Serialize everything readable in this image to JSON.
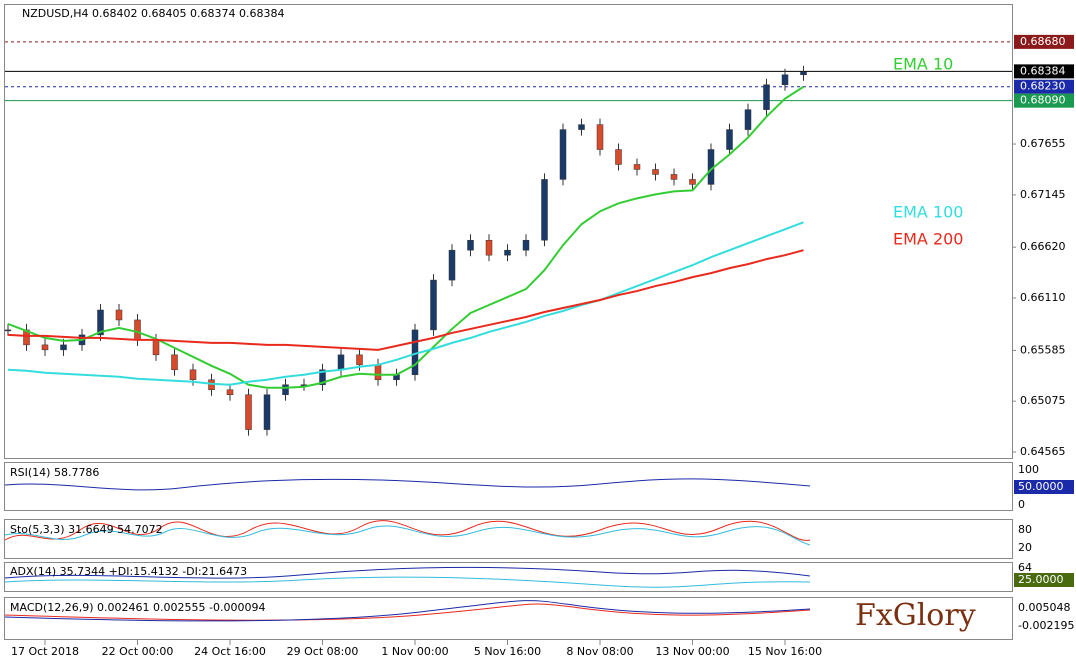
{
  "chart_data": {
    "type": "candlestick",
    "title": "NZDUSD,H4  0.68402 0.68405 0.68374 0.68384",
    "ylim": [
      0.64505,
      0.6905
    ],
    "yticks": [
      0.67655,
      0.67145,
      {
        "value": 0.6662,
        "label": "0.66620"
      },
      {
        "value": 0.6611,
        "label": "0.66110"
      },
      0.65585,
      0.65075,
      0.64565
    ],
    "levels": [
      {
        "value": 0.6868,
        "label": "0.68680",
        "color": "#8b1a1a"
      },
      {
        "value": 0.68384,
        "label": "0.68384",
        "color": "#000000"
      },
      {
        "value": 0.6823,
        "label": "0.68230",
        "color": "#1a2aa8"
      },
      {
        "value": 0.6809,
        "label": "0.68090",
        "color": "#1a9a50"
      }
    ],
    "categories": [
      null,
      null,
      "17 Oct 2018",
      null,
      null,
      null,
      null,
      "22 Oct 00:00",
      null,
      null,
      null,
      null,
      "24 Oct 16:00",
      null,
      null,
      null,
      null,
      "29 Oct 08:00",
      null,
      null,
      null,
      null,
      "1 Nov 00:00",
      null,
      null,
      null,
      null,
      "5 Nov 16:00",
      null,
      null,
      null,
      null,
      "8 Nov 08:00",
      null,
      null,
      null,
      null,
      "13 Nov 00:00",
      null,
      null,
      null,
      null,
      "15 Nov 16:00",
      null
    ],
    "values": [
      0.6579,
      0.6564,
      0.6559,
      0.6564,
      0.6574,
      0.6599,
      0.6589,
      0.6569,
      0.6554,
      0.6539,
      0.6529,
      0.6519,
      0.6514,
      0.6479,
      0.6514,
      0.6524,
      0.6524,
      0.6539,
      0.6554,
      0.6544,
      0.6529,
      0.6534,
      0.6579,
      0.6629,
      0.6659,
      0.6669,
      0.6654,
      0.6659,
      0.6669,
      0.673,
      0.678,
      0.6785,
      0.676,
      0.6745,
      0.674,
      0.6735,
      0.673,
      0.6725,
      0.676,
      0.678,
      0.68,
      0.6825,
      0.6835,
      0.6838
    ],
    "series": [
      {
        "name": "EMA 10",
        "color": "#33cc33",
        "values": [
          0.6585,
          0.6578,
          0.6571,
          0.6568,
          0.6569,
          0.6577,
          0.6581,
          0.6577,
          0.657,
          0.6561,
          0.6552,
          0.6543,
          0.6535,
          0.6524,
          0.6521,
          0.6521,
          0.6522,
          0.6526,
          0.6532,
          0.6535,
          0.6534,
          0.6534,
          0.6544,
          0.6562,
          0.658,
          0.6596,
          0.6604,
          0.6612,
          0.662,
          0.6639,
          0.6664,
          0.6685,
          0.6698,
          0.6706,
          0.6711,
          0.6715,
          0.6718,
          0.6719,
          0.674,
          0.6755,
          0.6772,
          0.6793,
          0.6811,
          0.6823
        ]
      },
      {
        "name": "EMA 100",
        "color": "#33dddd",
        "values": [
          0.6539,
          0.6538,
          0.6536,
          0.6535,
          0.6534,
          0.6533,
          0.6532,
          0.653,
          0.6529,
          0.6528,
          0.6527,
          0.6525,
          0.6524,
          0.6527,
          0.6529,
          0.6532,
          0.6534,
          0.6537,
          0.6539,
          0.6542,
          0.6544,
          0.6549,
          0.6555,
          0.656,
          0.6566,
          0.6571,
          0.6577,
          0.6582,
          0.6587,
          0.6593,
          0.6598,
          0.6604,
          0.6609,
          0.6616,
          0.6623,
          0.663,
          0.6637,
          0.6644,
          0.6652,
          0.6659,
          0.6666,
          0.6673,
          0.668,
          0.6687
        ]
      },
      {
        "name": "EMA 200",
        "color": "#e8291c",
        "values": [
          0.6574,
          0.6573,
          0.6573,
          0.6572,
          0.6571,
          0.6571,
          0.657,
          0.6569,
          0.6569,
          0.6568,
          0.6567,
          0.6566,
          0.6566,
          0.6565,
          0.6564,
          0.6564,
          0.6563,
          0.6562,
          0.6561,
          0.656,
          0.6559,
          0.6563,
          0.6567,
          0.6571,
          0.6576,
          0.658,
          0.6584,
          0.6588,
          0.6592,
          0.6597,
          0.6601,
          0.6605,
          0.6609,
          0.6614,
          0.6618,
          0.6623,
          0.6627,
          0.6632,
          0.6636,
          0.6641,
          0.6645,
          0.665,
          0.6654,
          0.6659
        ]
      }
    ],
    "panels": [
      {
        "title": "RSI(14) 58.7786",
        "ticks": [
          "100",
          "50.0000",
          "0"
        ]
      },
      {
        "title": "Sto(5,3,3) 31.6649 54.7072",
        "ticks": [
          "80",
          "20"
        ]
      },
      {
        "title": "ADX(14) 35.7344 +DI:15.4132 -DI:21.6473",
        "ticks": [
          "64",
          "25.0000"
        ]
      },
      {
        "title": "MACD(12,26,9) 0.002461 0.002555 -0.000094",
        "ticks": [
          "0.005048",
          "-0.002195"
        ]
      }
    ],
    "logo": "FxGlory"
  }
}
